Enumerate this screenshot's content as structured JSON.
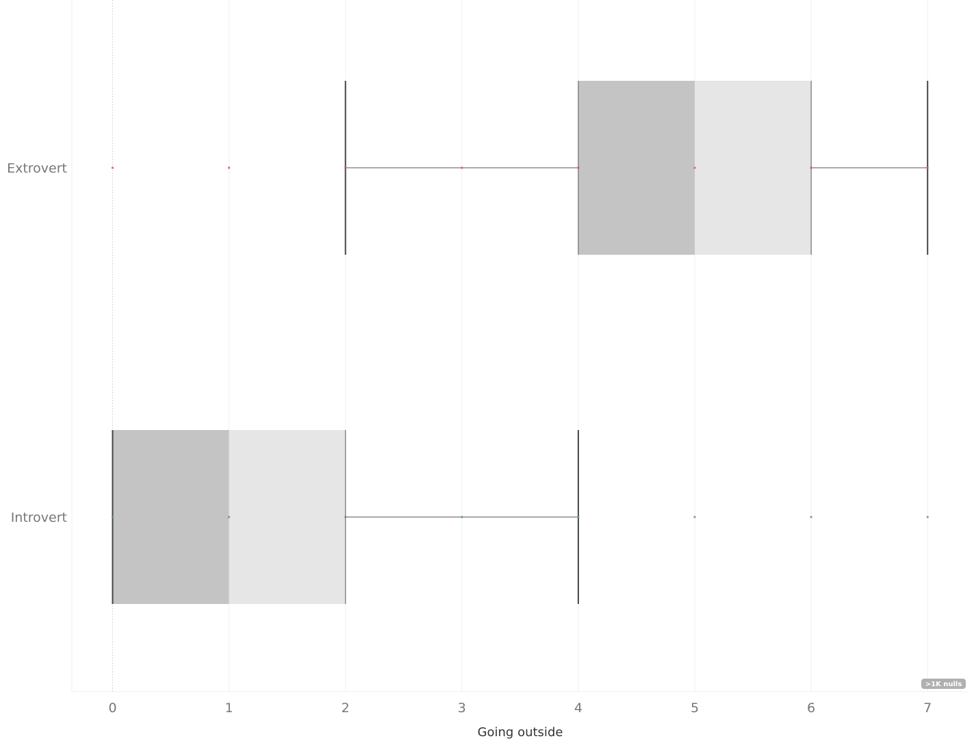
{
  "chart_data": {
    "type": "boxplot",
    "xlabel": "Going outside",
    "xlim": [
      -0.35,
      7.35
    ],
    "xticks": [
      0,
      1,
      2,
      3,
      4,
      5,
      6,
      7
    ],
    "xtick_labels": [
      "0",
      "1",
      "2",
      "3",
      "4",
      "5",
      "6",
      "7"
    ],
    "grid": true,
    "categories": [
      {
        "name": "Extrovert",
        "whisker_low": 2,
        "q1": 4,
        "median": 5,
        "q3": 6,
        "whisker_high": 7,
        "points": [
          0,
          1,
          2,
          3,
          4,
          5,
          6,
          7
        ],
        "point_color": "#d45a6a"
      },
      {
        "name": "Introvert",
        "whisker_low": 0,
        "q1": 0,
        "median": 1,
        "q3": 2,
        "whisker_high": 4,
        "points": [
          0,
          1,
          2,
          3,
          4,
          5,
          6,
          7
        ],
        "point_color": "#5aa85a"
      }
    ],
    "badge": ">1K nulls",
    "colors": {
      "lower_box": "#c4c4c4",
      "upper_box": "#e6e6e6",
      "whisker": "#555555",
      "grid": "#efefef"
    }
  }
}
